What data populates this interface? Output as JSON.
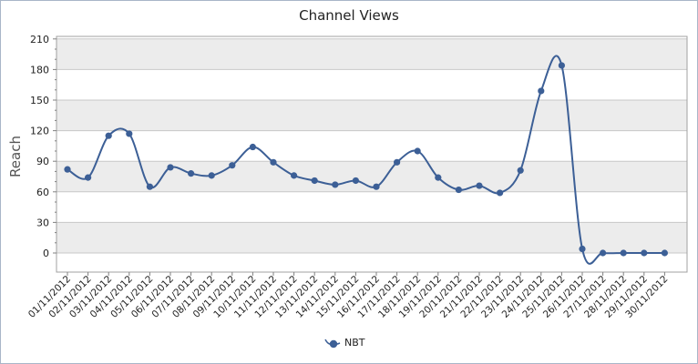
{
  "chart_data": {
    "type": "line",
    "title": "Channel Views",
    "xlabel": "",
    "ylabel": "Reach",
    "categories": [
      "01/11/2012",
      "02/11/2012",
      "03/11/2012",
      "04/11/2012",
      "05/11/2012",
      "06/11/2012",
      "07/11/2012",
      "08/11/2012",
      "09/11/2012",
      "10/11/2012",
      "11/11/2012",
      "12/11/2012",
      "13/11/2012",
      "14/11/2012",
      "15/11/2012",
      "16/11/2012",
      "17/11/2012",
      "18/11/2012",
      "19/11/2012",
      "20/11/2012",
      "21/11/2012",
      "22/11/2012",
      "23/11/2012",
      "24/11/2012",
      "25/11/2012",
      "26/11/2012",
      "27/11/2012",
      "28/11/2012",
      "29/11/2012",
      "30/11/2012"
    ],
    "series": [
      {
        "name": "NBT",
        "color": "#3c5f96",
        "values": [
          82,
          74,
          115,
          117,
          65,
          84,
          78,
          76,
          86,
          104,
          89,
          76,
          71,
          67,
          71,
          65,
          89,
          100,
          74,
          62,
          66,
          59,
          81,
          159,
          184,
          4,
          0,
          0,
          0,
          0
        ]
      }
    ],
    "ylim": [
      -10,
      210
    ],
    "yticks": [
      "210",
      "180",
      "150",
      "120",
      "90",
      "60",
      "30",
      "0"
    ],
    "grid": true,
    "legend_position": "bottom"
  }
}
